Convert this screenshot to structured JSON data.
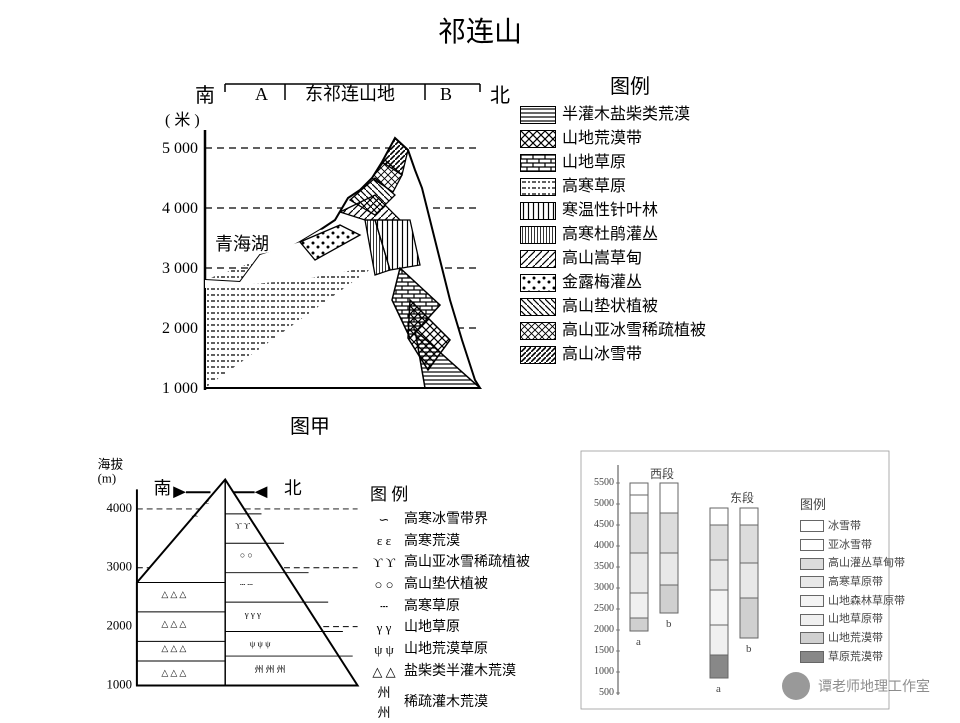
{
  "title": "祁连山",
  "diagramA": {
    "south": "南",
    "north": "北",
    "A": "A",
    "B": "B",
    "midLabel": "东祁连山地",
    "yUnit": "( 米 )",
    "yticks": [
      "1 000",
      "2 000",
      "3 000",
      "4 000",
      "5 000"
    ],
    "lake": "青海湖",
    "caption": "图甲",
    "legendTitle": "图例",
    "legend": [
      {
        "pattern": "horiz",
        "name": "半灌木盐柴类荒漠"
      },
      {
        "pattern": "crosshatch",
        "name": "山地荒漠带"
      },
      {
        "pattern": "brick",
        "name": "山地草原"
      },
      {
        "pattern": "dash",
        "name": "高寒草原"
      },
      {
        "pattern": "vert",
        "name": "寒温性针叶林"
      },
      {
        "pattern": "finevert",
        "name": "高寒杜鹃灌丛"
      },
      {
        "pattern": "diag1",
        "name": "高山嵩草甸"
      },
      {
        "pattern": "dots",
        "name": "金露梅灌丛"
      },
      {
        "pattern": "diag2",
        "name": "高山垫状植被"
      },
      {
        "pattern": "crossdiag",
        "name": "高山亚冰雪稀疏植被"
      },
      {
        "pattern": "diag3",
        "name": "高山冰雪带"
      }
    ]
  },
  "diagramB": {
    "yLabel": "海拔\n(m)",
    "south": "南",
    "north": "北",
    "yticks": [
      "1000",
      "2000",
      "3000",
      "4000"
    ],
    "legendTitle": "图 例",
    "legend": [
      {
        "sym": "∽",
        "name": "高寒冰雪带界"
      },
      {
        "sym": "ε ε",
        "name": "高寒荒漠"
      },
      {
        "sym": "ϒ ϒ",
        "name": "高山亚冰雪稀疏植被"
      },
      {
        "sym": "○ ○",
        "name": "高山垫伏植被"
      },
      {
        "sym": "┄",
        "name": "高寒草原"
      },
      {
        "sym": "γ γ",
        "name": "山地草原"
      },
      {
        "sym": "ψ ψ",
        "name": "山地荒漠草原"
      },
      {
        "sym": "△ △",
        "name": "盐柴类半灌木荒漠"
      },
      {
        "sym": "州 州",
        "name": "稀疏灌木荒漠"
      }
    ]
  },
  "diagramC": {
    "leftLab": "西段",
    "rightLab": "东段",
    "a": "a",
    "b": "b",
    "yticks": [
      "500",
      "1000",
      "1500",
      "2000",
      "2500",
      "3000",
      "3500",
      "4000",
      "4500",
      "5000",
      "5500"
    ],
    "legendTitle": "图例",
    "legend": [
      {
        "c": "#ffffff",
        "name": "冰雪带"
      },
      {
        "c": "#ffffff",
        "name": "亚冰雪带"
      },
      {
        "c": "#dcdcdc",
        "name": "高山灌丛草甸带"
      },
      {
        "c": "#e8e8e8",
        "name": "高寒草原带"
      },
      {
        "c": "#f4f4f4",
        "name": "山地森林草原带"
      },
      {
        "c": "#f0f0f0",
        "name": "山地草原带"
      },
      {
        "c": "#d0d0d0",
        "name": "山地荒漠带"
      },
      {
        "c": "#888888",
        "name": "草原荒漠带"
      }
    ]
  },
  "watermark": "谭老师地理工作室"
}
